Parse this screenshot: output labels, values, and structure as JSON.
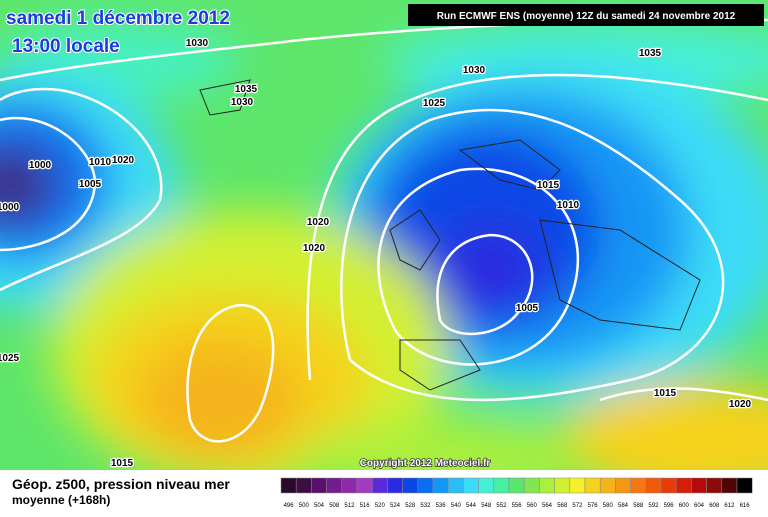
{
  "header": {
    "date": "samedi 1 décembre 2012",
    "time": "13:00 locale",
    "run": "Run ECMWF ENS (moyenne) 12Z du samedi 24 novembre 2012"
  },
  "isobar_labels": [
    "1030",
    "1030",
    "1035",
    "1035",
    "1030",
    "1025",
    "1000",
    "1010",
    "1020",
    "1005",
    "1000",
    "1015",
    "1010",
    "1020",
    "1020",
    "1005",
    "1025",
    "1015",
    "1020",
    "1015"
  ],
  "copyright": "Copyright 2012 Meteociel.fr",
  "legend": {
    "title": "Géop. z500, pression niveau mer",
    "subtitle": "moyenne  (+168h)",
    "levels": [
      496,
      500,
      504,
      508,
      512,
      516,
      520,
      524,
      528,
      532,
      536,
      540,
      544,
      548,
      552,
      556,
      560,
      564,
      568,
      572,
      576,
      580,
      584,
      588,
      592,
      596,
      600,
      604,
      608,
      612,
      616
    ],
    "colors": [
      "#2a0a2a",
      "#3c0f44",
      "#58106a",
      "#731c8c",
      "#8c2aa8",
      "#a03cc0",
      "#5a2ad8",
      "#2a2ae0",
      "#0a46e6",
      "#0a6ef0",
      "#1496f5",
      "#2abef8",
      "#3cdcf8",
      "#46f0d8",
      "#46f0a0",
      "#5ae66e",
      "#82e650",
      "#aaf03c",
      "#d2f032",
      "#f5f028",
      "#f5d21e",
      "#f5b41e",
      "#f59614",
      "#f57814",
      "#f05a0a",
      "#e63c0a",
      "#d21e0a",
      "#b40a0a",
      "#8c0a0a",
      "#500505",
      "#000000"
    ]
  }
}
